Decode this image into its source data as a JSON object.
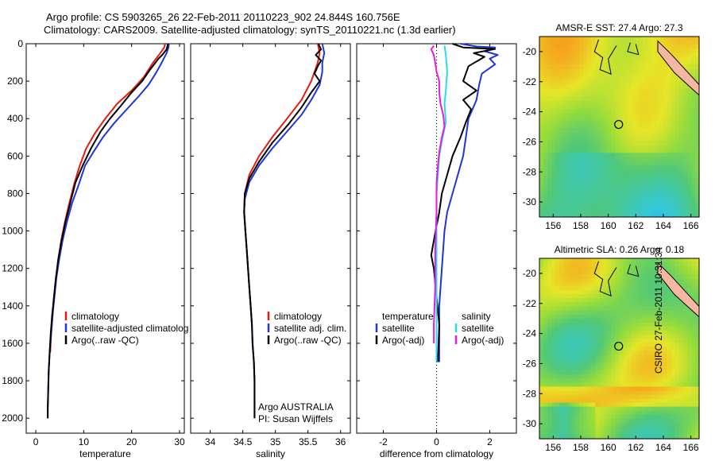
{
  "header": {
    "line1": "Argo profile: CS 5903265_26 22-Feb-2011 20110223_902 24.844S 160.756E",
    "line2": "Climatology: CARS2009. Satellite-adjusted climatology: synTS_20110221.nc (1.3d earlier)"
  },
  "footer_note": "CSIRO 27-Feb-2011 10:31:34",
  "colors": {
    "climatology": "#e8190f",
    "satellite": "#1f35d8",
    "argo": "#000000",
    "salinity_satellite": "#23e0e8",
    "salinity_argo": "#e619e6"
  },
  "chart_data": [
    {
      "type": "line",
      "id": "temperature",
      "xlabel": "temperature",
      "ylabel": "",
      "xlim": [
        -2,
        31
      ],
      "ylim": [
        2080,
        0
      ],
      "y_reversed": true,
      "xticks": [
        "0",
        "10",
        "20",
        "30"
      ],
      "yticks": [
        "0",
        "200",
        "400",
        "600",
        "800",
        "1000",
        "1200",
        "1400",
        "1600",
        "1800",
        "2000"
      ],
      "legend": [
        "climatology",
        "satellite-adjusted climatolog",
        "Argo(..raw -QC)"
      ],
      "series": [
        {
          "name": "climatology",
          "color": "#e8190f",
          "points": [
            [
              27.0,
              0
            ],
            [
              26.8,
              20
            ],
            [
              26.0,
              50
            ],
            [
              24.5,
              100
            ],
            [
              22.5,
              180
            ],
            [
              20.0,
              250
            ],
            [
              17.0,
              320
            ],
            [
              14.5,
              400
            ],
            [
              12.3,
              480
            ],
            [
              10.5,
              560
            ],
            [
              9.2,
              650
            ],
            [
              8.0,
              750
            ],
            [
              7.0,
              850
            ],
            [
              6.1,
              950
            ],
            [
              5.3,
              1050
            ],
            [
              4.7,
              1150
            ],
            [
              4.2,
              1250
            ],
            [
              3.8,
              1350
            ],
            [
              3.5,
              1450
            ],
            [
              3.2,
              1550
            ],
            [
              3.0,
              1650
            ]
          ]
        },
        {
          "name": "satellite-adjusted climatolog",
          "color": "#1f35d8",
          "points": [
            [
              27.8,
              0
            ],
            [
              27.7,
              20
            ],
            [
              27.3,
              50
            ],
            [
              26.3,
              100
            ],
            [
              25.0,
              160
            ],
            [
              23.5,
              220
            ],
            [
              21.5,
              280
            ],
            [
              19.0,
              350
            ],
            [
              16.5,
              420
            ],
            [
              14.0,
              500
            ],
            [
              12.0,
              580
            ],
            [
              10.3,
              650
            ],
            [
              9.0,
              750
            ],
            [
              7.6,
              850
            ],
            [
              6.5,
              950
            ],
            [
              5.6,
              1050
            ],
            [
              4.9,
              1150
            ],
            [
              4.3,
              1250
            ],
            [
              3.9,
              1350
            ],
            [
              3.5,
              1450
            ],
            [
              3.2,
              1550
            ],
            [
              2.9,
              1650
            ],
            [
              2.7,
              1750
            ],
            [
              2.6,
              1850
            ],
            [
              2.5,
              1950
            ],
            [
              2.5,
              2000
            ]
          ]
        },
        {
          "name": "Argo(..raw -QC)",
          "color": "#000000",
          "points": [
            [
              27.6,
              0
            ],
            [
              27.5,
              10
            ],
            [
              27.3,
              30
            ],
            [
              26.4,
              60
            ],
            [
              25.6,
              80
            ],
            [
              25.0,
              100
            ],
            [
              23.8,
              140
            ],
            [
              22.2,
              200
            ],
            [
              20.0,
              260
            ],
            [
              17.8,
              330
            ],
            [
              15.5,
              400
            ],
            [
              13.5,
              470
            ],
            [
              11.5,
              560
            ],
            [
              9.8,
              650
            ],
            [
              8.3,
              740
            ],
            [
              7.2,
              850
            ],
            [
              6.2,
              950
            ],
            [
              5.4,
              1050
            ],
            [
              4.7,
              1150
            ],
            [
              4.2,
              1250
            ],
            [
              3.8,
              1350
            ],
            [
              3.4,
              1450
            ],
            [
              3.1,
              1550
            ],
            [
              2.9,
              1650
            ],
            [
              2.7,
              1750
            ],
            [
              2.6,
              1850
            ],
            [
              2.5,
              1950
            ],
            [
              2.5,
              2000
            ]
          ]
        }
      ]
    },
    {
      "type": "line",
      "id": "salinity",
      "xlabel": "salinity",
      "ylabel": "",
      "xlim": [
        33.7,
        36.15
      ],
      "ylim": [
        2080,
        0
      ],
      "y_reversed": true,
      "xticks": [
        "34",
        "34.5",
        "35",
        "35.5",
        "36"
      ],
      "legend": [
        "climatology",
        "satellite adj. clim.",
        "Argo(..raw -QC)"
      ],
      "annotation": [
        "Argo AUSTRALIA",
        "PI: Susan Wijffels"
      ],
      "series": [
        {
          "name": "climatology",
          "color": "#e8190f",
          "points": [
            [
              35.65,
              0
            ],
            [
              35.68,
              50
            ],
            [
              35.65,
              100
            ],
            [
              35.55,
              200
            ],
            [
              35.4,
              300
            ],
            [
              35.18,
              400
            ],
            [
              34.95,
              500
            ],
            [
              34.75,
              600
            ],
            [
              34.6,
              700
            ],
            [
              34.53,
              800
            ],
            [
              34.52,
              900
            ],
            [
              34.54,
              1000
            ],
            [
              34.56,
              1100
            ],
            [
              34.58,
              1200
            ],
            [
              34.6,
              1300
            ],
            [
              34.62,
              1400
            ],
            [
              34.64,
              1500
            ]
          ]
        },
        {
          "name": "satellite adj. clim.",
          "color": "#1f35d8",
          "points": [
            [
              35.72,
              0
            ],
            [
              35.75,
              50
            ],
            [
              35.72,
              100
            ],
            [
              35.72,
              150
            ],
            [
              35.68,
              220
            ],
            [
              35.55,
              300
            ],
            [
              35.4,
              380
            ],
            [
              35.2,
              460
            ],
            [
              34.95,
              560
            ],
            [
              34.75,
              650
            ],
            [
              34.6,
              740
            ],
            [
              34.53,
              830
            ],
            [
              34.52,
              900
            ],
            [
              34.54,
              1000
            ],
            [
              34.56,
              1100
            ],
            [
              34.58,
              1200
            ],
            [
              34.6,
              1300
            ],
            [
              34.62,
              1400
            ],
            [
              34.64,
              1500
            ],
            [
              34.65,
              1600
            ],
            [
              34.67,
              1700
            ],
            [
              34.68,
              1800
            ],
            [
              34.68,
              1900
            ],
            [
              34.68,
              2000
            ]
          ]
        },
        {
          "name": "Argo(..raw -QC)",
          "color": "#000000",
          "points": [
            [
              35.66,
              0
            ],
            [
              35.7,
              30
            ],
            [
              35.62,
              60
            ],
            [
              35.7,
              90
            ],
            [
              35.65,
              120
            ],
            [
              35.6,
              160
            ],
            [
              35.68,
              200
            ],
            [
              35.55,
              260
            ],
            [
              35.4,
              340
            ],
            [
              35.2,
              430
            ],
            [
              34.95,
              530
            ],
            [
              34.75,
              630
            ],
            [
              34.6,
              720
            ],
            [
              34.53,
              800
            ],
            [
              34.52,
              900
            ],
            [
              34.54,
              1000
            ],
            [
              34.56,
              1100
            ],
            [
              34.58,
              1200
            ],
            [
              34.6,
              1300
            ],
            [
              34.62,
              1400
            ],
            [
              34.64,
              1500
            ],
            [
              34.65,
              1600
            ],
            [
              34.67,
              1700
            ],
            [
              34.68,
              1800
            ],
            [
              34.68,
              1900
            ],
            [
              34.68,
              2000
            ]
          ]
        }
      ]
    },
    {
      "type": "line",
      "id": "difference",
      "xlabel": "difference from climatology",
      "ylabel": "",
      "xlim": [
        -3,
        3
      ],
      "ylim": [
        2080,
        0
      ],
      "y_reversed": true,
      "xticks": [
        "-2",
        "0",
        "2"
      ],
      "legend_groups": [
        {
          "title": "temperature",
          "items": [
            "satellite",
            "Argo(-adj)"
          ]
        },
        {
          "title": "salinity",
          "items": [
            "satellite",
            "Argo(-adj)"
          ]
        }
      ],
      "series": [
        {
          "name": "satellite",
          "group": "temperature",
          "color": "#1f35d8",
          "points": [
            [
              0.9,
              0
            ],
            [
              1.5,
              15
            ],
            [
              2.2,
              20
            ],
            [
              1.8,
              40
            ],
            [
              2.3,
              60
            ],
            [
              2.0,
              80
            ],
            [
              2.2,
              110
            ],
            [
              1.7,
              160
            ],
            [
              1.6,
              220
            ],
            [
              1.5,
              300
            ],
            [
              1.2,
              400
            ],
            [
              1.1,
              500
            ],
            [
              1.0,
              600
            ],
            [
              0.8,
              700
            ],
            [
              0.6,
              800
            ],
            [
              0.4,
              900
            ],
            [
              0.3,
              1000
            ],
            [
              0.2,
              1200
            ],
            [
              0.1,
              1400
            ],
            [
              0.1,
              1600
            ],
            [
              0.1,
              1700
            ]
          ]
        },
        {
          "name": "Argo(-adj)",
          "group": "temperature",
          "color": "#000000",
          "points": [
            [
              0.6,
              0
            ],
            [
              1.0,
              20
            ],
            [
              2.2,
              28
            ],
            [
              1.4,
              50
            ],
            [
              1.8,
              70
            ],
            [
              1.2,
              120
            ],
            [
              1.0,
              200
            ],
            [
              1.5,
              250
            ],
            [
              1.0,
              300
            ],
            [
              1.3,
              350
            ],
            [
              1.1,
              420
            ],
            [
              0.9,
              500
            ],
            [
              0.6,
              600
            ],
            [
              0.4,
              700
            ],
            [
              0.2,
              800
            ],
            [
              0.1,
              900
            ],
            [
              -0.1,
              1050
            ],
            [
              -0.2,
              1130
            ],
            [
              -0.1,
              1200
            ],
            [
              0.0,
              1350
            ],
            [
              0.1,
              1500
            ],
            [
              0.05,
              1700
            ]
          ]
        },
        {
          "name": "satellite",
          "group": "salinity",
          "color": "#23e0e8",
          "points": [
            [
              0.3,
              10
            ],
            [
              0.35,
              60
            ],
            [
              0.4,
              150
            ],
            [
              0.35,
              250
            ],
            [
              0.3,
              320
            ],
            [
              0.35,
              420
            ],
            [
              0.2,
              520
            ],
            [
              0.1,
              600
            ],
            [
              0.05,
              700
            ],
            [
              0.0,
              800
            ],
            [
              0.0,
              1000
            ],
            [
              0.0,
              1200
            ],
            [
              0.0,
              1400
            ],
            [
              0.0,
              1700
            ]
          ]
        },
        {
          "name": "Argo(-adj)",
          "group": "salinity",
          "color": "#e619e6",
          "points": [
            [
              -0.1,
              10
            ],
            [
              -0.2,
              30
            ],
            [
              -0.1,
              60
            ],
            [
              -0.05,
              100
            ],
            [
              0.0,
              150
            ],
            [
              0.1,
              200
            ],
            [
              0.1,
              260
            ],
            [
              0.15,
              320
            ],
            [
              0.25,
              380
            ],
            [
              0.3,
              440
            ],
            [
              0.2,
              500
            ],
            [
              0.1,
              580
            ],
            [
              0.05,
              650
            ],
            [
              0.0,
              750
            ],
            [
              0.0,
              900
            ],
            [
              -0.05,
              1100
            ],
            [
              -0.05,
              1300
            ],
            [
              -0.1,
              1500
            ],
            [
              -0.1,
              1600
            ]
          ]
        }
      ]
    },
    {
      "type": "heatmap",
      "id": "sst_map",
      "title": "AMSR-E SST: 27.4 Argo: 27.3",
      "xticks": [
        "156",
        "158",
        "160",
        "162",
        "164",
        "166"
      ],
      "yticks": [
        "-20",
        "-22",
        "-24",
        "-26",
        "-28",
        "-30"
      ],
      "xlim": [
        155,
        166.6
      ],
      "ylim": [
        -31,
        -19
      ],
      "marker": {
        "lon": 160.756,
        "lat": -24.844
      }
    },
    {
      "type": "heatmap",
      "id": "sla_map",
      "title": "Altimetric SLA: 0.26 Argo: 0.18",
      "xticks": [
        "156",
        "158",
        "160",
        "162",
        "164",
        "166"
      ],
      "yticks": [
        "-20",
        "-22",
        "-24",
        "-26",
        "-28",
        "-30"
      ],
      "xlim": [
        155,
        166.6
      ],
      "ylim": [
        -31,
        -19
      ],
      "marker": {
        "lon": 160.756,
        "lat": -24.844
      }
    }
  ]
}
